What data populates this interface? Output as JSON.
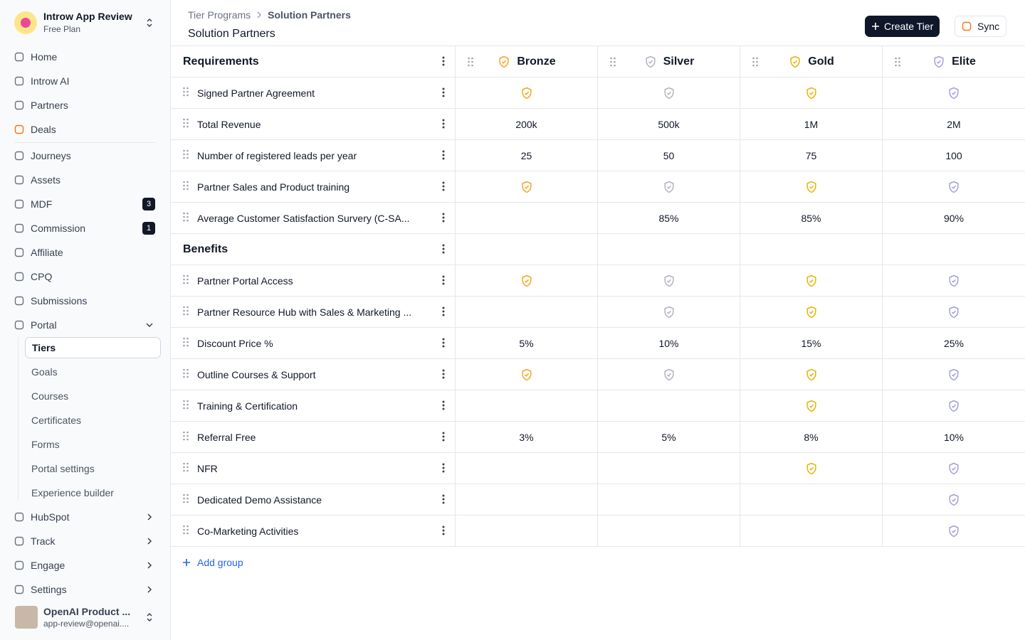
{
  "workspace": {
    "name": "Introw App Review",
    "plan": "Free Plan"
  },
  "nav": {
    "main": [
      {
        "label": "Home"
      },
      {
        "label": "Introw AI"
      },
      {
        "label": "Partners"
      },
      {
        "label": "Deals"
      }
    ],
    "secondary": [
      {
        "label": "Journeys"
      },
      {
        "label": "Assets"
      },
      {
        "label": "MDF",
        "badge": "3"
      },
      {
        "label": "Commission",
        "badge": "1"
      },
      {
        "label": "Affiliate"
      },
      {
        "label": "CPQ"
      },
      {
        "label": "Submissions"
      }
    ],
    "portal": {
      "label": "Portal",
      "items": [
        {
          "label": "Tiers",
          "selected": true
        },
        {
          "label": "Goals"
        },
        {
          "label": "Courses"
        },
        {
          "label": "Certificates"
        },
        {
          "label": "Forms"
        },
        {
          "label": "Portal settings"
        },
        {
          "label": "Experience builder"
        }
      ]
    },
    "more": [
      {
        "label": "HubSpot"
      },
      {
        "label": "Track"
      },
      {
        "label": "Engage"
      },
      {
        "label": "Settings"
      }
    ]
  },
  "user": {
    "name": "OpenAI Product ...",
    "email": "app-review@openai...."
  },
  "breadcrumb": [
    "Tier Programs",
    "Solution Partners"
  ],
  "page_title": "Solution Partners",
  "actions": {
    "create": "Create Tier",
    "sync": "Sync"
  },
  "table": {
    "tiers": [
      {
        "name": "Bronze",
        "color": "#f5a524"
      },
      {
        "name": "Silver",
        "color": "#b0b5bd"
      },
      {
        "name": "Gold",
        "color": "#eab308"
      },
      {
        "name": "Elite",
        "color": "#a3a1d6"
      }
    ],
    "groups": [
      {
        "name": "Requirements",
        "rows": [
          {
            "label": "Signed Partner Agreement",
            "cells": [
              true,
              true,
              true,
              true
            ]
          },
          {
            "label": "Total Revenue",
            "cells": [
              "200k",
              "500k",
              "1M",
              "2M"
            ]
          },
          {
            "label": "Number of registered leads per year",
            "cells": [
              "25",
              "50",
              "75",
              "100"
            ]
          },
          {
            "label": "Partner Sales and Product training",
            "cells": [
              true,
              true,
              true,
              true
            ]
          },
          {
            "label": "Average Customer Satisfaction Survery (C-SA...",
            "cells": [
              null,
              "85%",
              "85%",
              "90%"
            ]
          }
        ]
      },
      {
        "name": "Benefits",
        "rows": [
          {
            "label": "Partner Portal Access",
            "cells": [
              true,
              true,
              true,
              true
            ]
          },
          {
            "label": "Partner Resource Hub with Sales & Marketing ...",
            "cells": [
              null,
              true,
              true,
              true
            ]
          },
          {
            "label": "Discount Price %",
            "cells": [
              "5%",
              "10%",
              "15%",
              "25%"
            ]
          },
          {
            "label": "Outline Courses & Support",
            "cells": [
              true,
              true,
              true,
              true
            ]
          },
          {
            "label": "Training & Certification",
            "cells": [
              null,
              null,
              true,
              true
            ]
          },
          {
            "label": "Referral Free",
            "cells": [
              "3%",
              "5%",
              "8%",
              "10%"
            ]
          },
          {
            "label": "NFR",
            "cells": [
              null,
              null,
              true,
              true
            ]
          },
          {
            "label": "Dedicated Demo Assistance",
            "cells": [
              null,
              null,
              null,
              true
            ]
          },
          {
            "label": "Co-Marketing Activities",
            "cells": [
              null,
              null,
              null,
              true
            ]
          }
        ]
      }
    ]
  },
  "add_group": "Add group"
}
